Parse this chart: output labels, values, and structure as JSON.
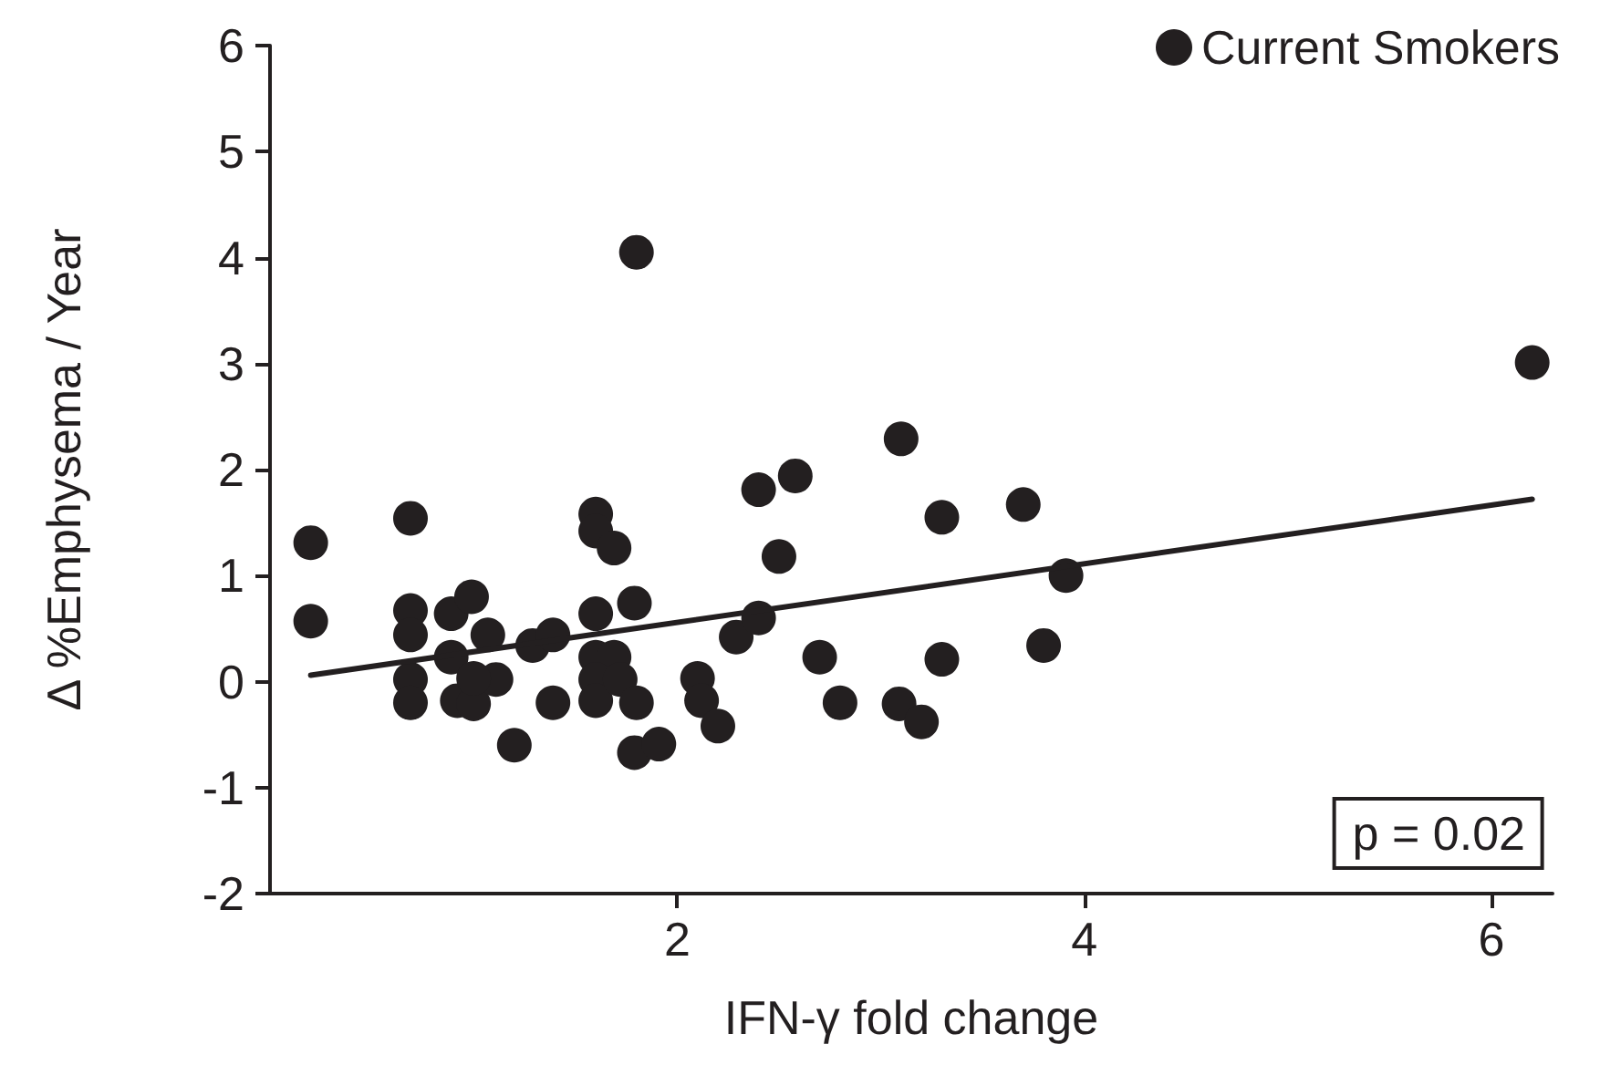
{
  "chart_data": {
    "type": "scatter",
    "xlabel": "IFN-γ fold change",
    "ylabel": "Δ %Emphysema / Year",
    "xlim": [
      0,
      6.3
    ],
    "xticks": [
      2,
      4,
      6
    ],
    "ylim": [
      -2,
      6
    ],
    "yticks": [
      -2,
      -1,
      0,
      1,
      2,
      3,
      4,
      5,
      6
    ],
    "grid": false,
    "legend": "top right",
    "marker": "circle",
    "annotations": [
      "p = 0.02"
    ],
    "series": [
      {
        "name": "Current Smokers",
        "color": "#231f20",
        "x": [
          0.2,
          0.2,
          0.69,
          0.69,
          0.69,
          0.69,
          0.69,
          0.89,
          0.99,
          0.89,
          0.92,
          1.0,
          1.07,
          1.11,
          1.0,
          1.2,
          1.29,
          1.39,
          1.39,
          1.6,
          1.6,
          1.69,
          1.6,
          1.6,
          1.69,
          1.6,
          1.6,
          1.72,
          1.79,
          1.8,
          1.79,
          1.91,
          2.1,
          2.12,
          2.2,
          2.29,
          2.4,
          2.4,
          2.5,
          2.58,
          3.1,
          3.3,
          3.7,
          3.91,
          2.7,
          2.8,
          3.3,
          3.8,
          3.09,
          3.2,
          6.2,
          1.8
        ],
        "values": [
          1.31,
          0.57,
          1.54,
          0.67,
          0.44,
          0.02,
          -0.2,
          0.64,
          0.8,
          0.23,
          -0.18,
          -0.21,
          0.44,
          0.02,
          0.03,
          -0.6,
          0.34,
          0.44,
          -0.2,
          1.58,
          1.42,
          1.26,
          0.64,
          0.23,
          0.23,
          0.02,
          -0.18,
          0.02,
          0.74,
          -0.2,
          -0.67,
          -0.59,
          0.03,
          -0.18,
          -0.42,
          0.42,
          0.6,
          1.81,
          1.18,
          1.94,
          2.29,
          1.55,
          1.67,
          1.0,
          0.23,
          -0.2,
          0.21,
          0.34,
          -0.21,
          -0.38,
          3.01,
          4.05
        ]
      },
      {
        "type": "line",
        "color": "#231f20",
        "marker": "none",
        "x": [
          0.2,
          6.2
        ],
        "values": [
          0.06,
          1.72
        ]
      }
    ]
  }
}
